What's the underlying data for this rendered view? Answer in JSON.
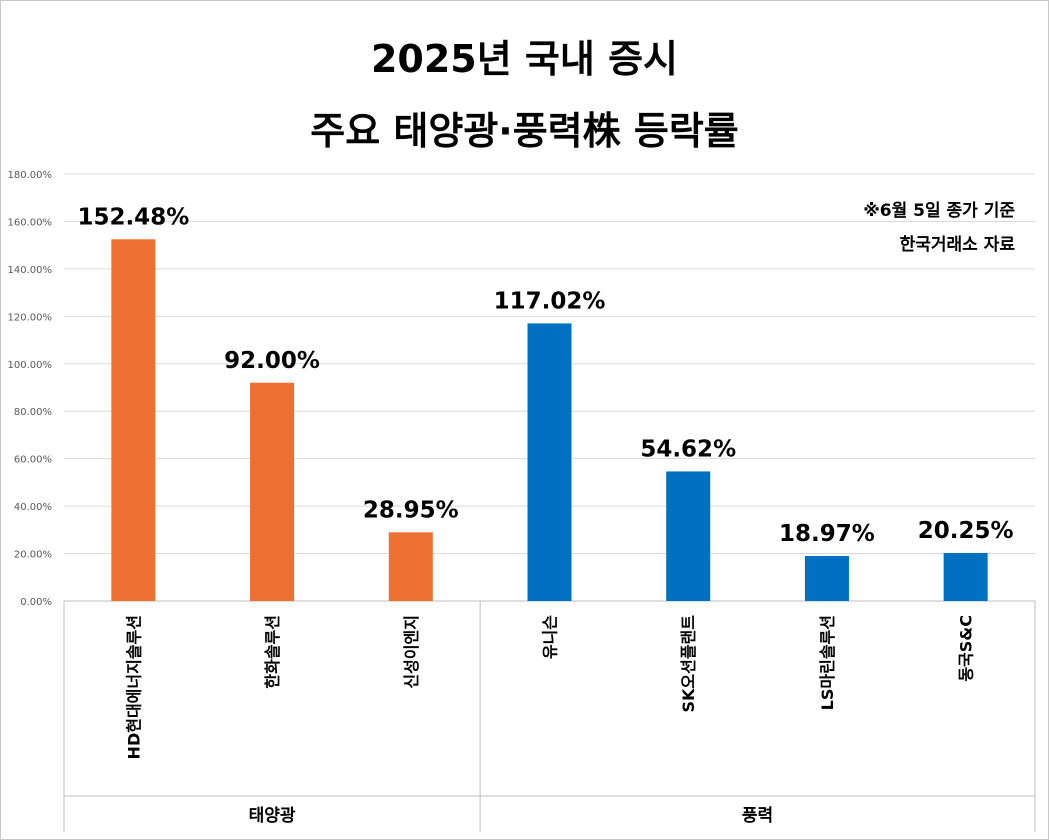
{
  "title_line1": "2025년 국내 증시",
  "title_line2": "주요 태양광·풍력株 등락률",
  "note_line1": "※6월 5일 종가 기준",
  "note_line2": "한국거래소 자료",
  "chart_data": {
    "type": "bar",
    "categories": [
      "HD현대에너지솔루션",
      "한화솔루션",
      "신성이엔지",
      "유니슨",
      "SK오션플랜트",
      "LS마린솔루션",
      "동국S&C"
    ],
    "values": [
      152.48,
      92.0,
      28.95,
      117.02,
      54.62,
      18.97,
      20.25
    ],
    "value_labels": [
      "152.48%",
      "92.00%",
      "28.95%",
      "117.02%",
      "54.62%",
      "18.97%",
      "20.25%"
    ],
    "groups": [
      {
        "name": "태양광",
        "count": 3,
        "color": "#ED7031"
      },
      {
        "name": "풍력",
        "count": 4,
        "color": "#0070C0"
      }
    ],
    "ylim": [
      0,
      180
    ],
    "yticks": [
      "0.00%",
      "20.00%",
      "40.00%",
      "60.00%",
      "80.00%",
      "100.00%",
      "120.00%",
      "140.00%",
      "160.00%",
      "180.00%"
    ],
    "grid": true,
    "gridline_color": "#d9d9d9"
  }
}
